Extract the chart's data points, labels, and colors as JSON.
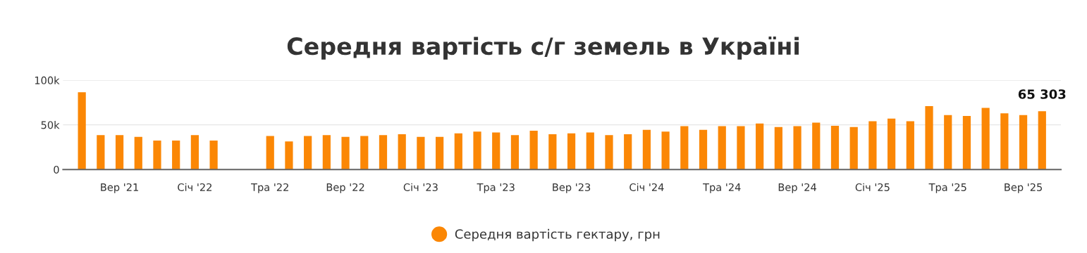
{
  "chart_data": {
    "type": "bar",
    "title": "Середня вартість с/г земель в Україні",
    "categories": [
      null,
      null,
      "Вер '21",
      null,
      null,
      null,
      "Січ '22",
      null,
      null,
      null,
      "Тра '22",
      null,
      null,
      null,
      "Вер '22",
      null,
      null,
      null,
      "Січ '23",
      null,
      null,
      null,
      "Тра '23",
      null,
      null,
      null,
      "Вер '23",
      null,
      null,
      null,
      "Січ '24",
      null,
      null,
      null,
      "Тра '24",
      null,
      null,
      null,
      "Вер '24",
      null,
      null,
      null,
      "Січ '25",
      null,
      null,
      null,
      "Тра '25",
      null,
      null,
      null,
      "Вер '25",
      null
    ],
    "series": [
      {
        "name": "Середня вартість гектару, грн",
        "color": "#fb8705",
        "values": [
          86500,
          38500,
          38500,
          36500,
          32500,
          32500,
          38500,
          32500,
          null,
          null,
          37500,
          31500,
          37500,
          38500,
          36500,
          37500,
          38500,
          39500,
          36500,
          36500,
          40500,
          42500,
          41500,
          38500,
          43500,
          39500,
          40500,
          41500,
          38500,
          39500,
          44500,
          42500,
          48500,
          44500,
          48500,
          48500,
          51500,
          47500,
          48500,
          52500,
          49000,
          47500,
          54000,
          57000,
          54000,
          71000,
          61000,
          60000,
          69000,
          63000,
          61000,
          65303
        ],
        "value_labels": [
          null,
          null,
          null,
          null,
          null,
          null,
          null,
          null,
          null,
          null,
          null,
          null,
          null,
          null,
          null,
          null,
          null,
          null,
          null,
          null,
          null,
          null,
          null,
          null,
          null,
          null,
          null,
          null,
          null,
          null,
          null,
          null,
          null,
          null,
          null,
          null,
          null,
          null,
          null,
          null,
          null,
          null,
          null,
          null,
          null,
          null,
          null,
          null,
          null,
          null,
          null,
          "65 303"
        ]
      }
    ],
    "ylim": [
      0,
      100000
    ],
    "yticks": [
      0,
      {
        "value": 50000,
        "label": "50k"
      },
      {
        "value": 100000,
        "label": "100k"
      }
    ],
    "grid": "y",
    "legend": "bottom",
    "marker": "circle"
  }
}
